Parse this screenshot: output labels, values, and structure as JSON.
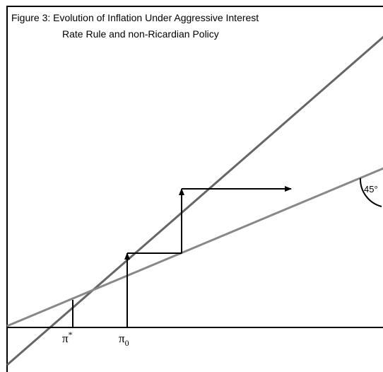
{
  "figure": {
    "title_lines": [
      "Figure 3: Evolution of Inflation Under Aggressive Interest",
      "Rate Rule and non-Ricardian Policy"
    ],
    "labels": [
      {
        "symbol": "π",
        "sup": "*"
      },
      {
        "symbol": "π",
        "sub": "0"
      }
    ],
    "angle_label": "45°"
  }
}
